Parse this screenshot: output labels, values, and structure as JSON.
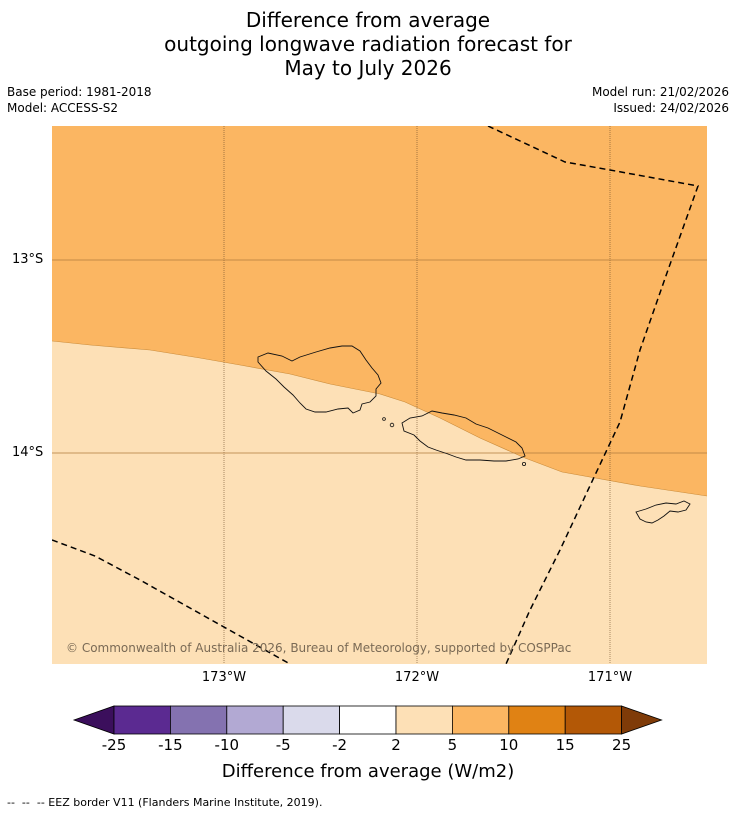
{
  "title": {
    "line1": "Difference from average",
    "line2": "outgoing longwave radiation forecast for",
    "line3": "May to July 2026"
  },
  "meta": {
    "base_period": "Base period: 1981-2018",
    "model": "Model: ACCESS-S2",
    "model_run": "Model run: 21/02/2026",
    "issued": "Issued: 24/02/2026"
  },
  "map": {
    "lat_labels": [
      "13°S",
      "14°S"
    ],
    "lon_labels": [
      "173°W",
      "172°W",
      "171°W"
    ],
    "copyright": "© Commonwealth of Australia 2026, Bureau of Meteorology, supported by COSPPac",
    "fill_upper_class": "5 to 10",
    "fill_lower_class": "2 to 5"
  },
  "colorbar": {
    "ticks": [
      "-25",
      "-15",
      "-10",
      "-5",
      "-2",
      "2",
      "5",
      "10",
      "15",
      "25"
    ],
    "colors": [
      "#3b0f5c",
      "#5b2a91",
      "#8472b0",
      "#b2a9d3",
      "#dadaeb",
      "#ffffff",
      "#fde0b6",
      "#fbb662",
      "#e08214",
      "#b35806",
      "#7f3b08"
    ],
    "label": "Difference from average (W/m2)"
  },
  "legend": {
    "eez": "--  --  -- EEZ border V11 (Flanders Marine Institute, 2019)."
  }
}
